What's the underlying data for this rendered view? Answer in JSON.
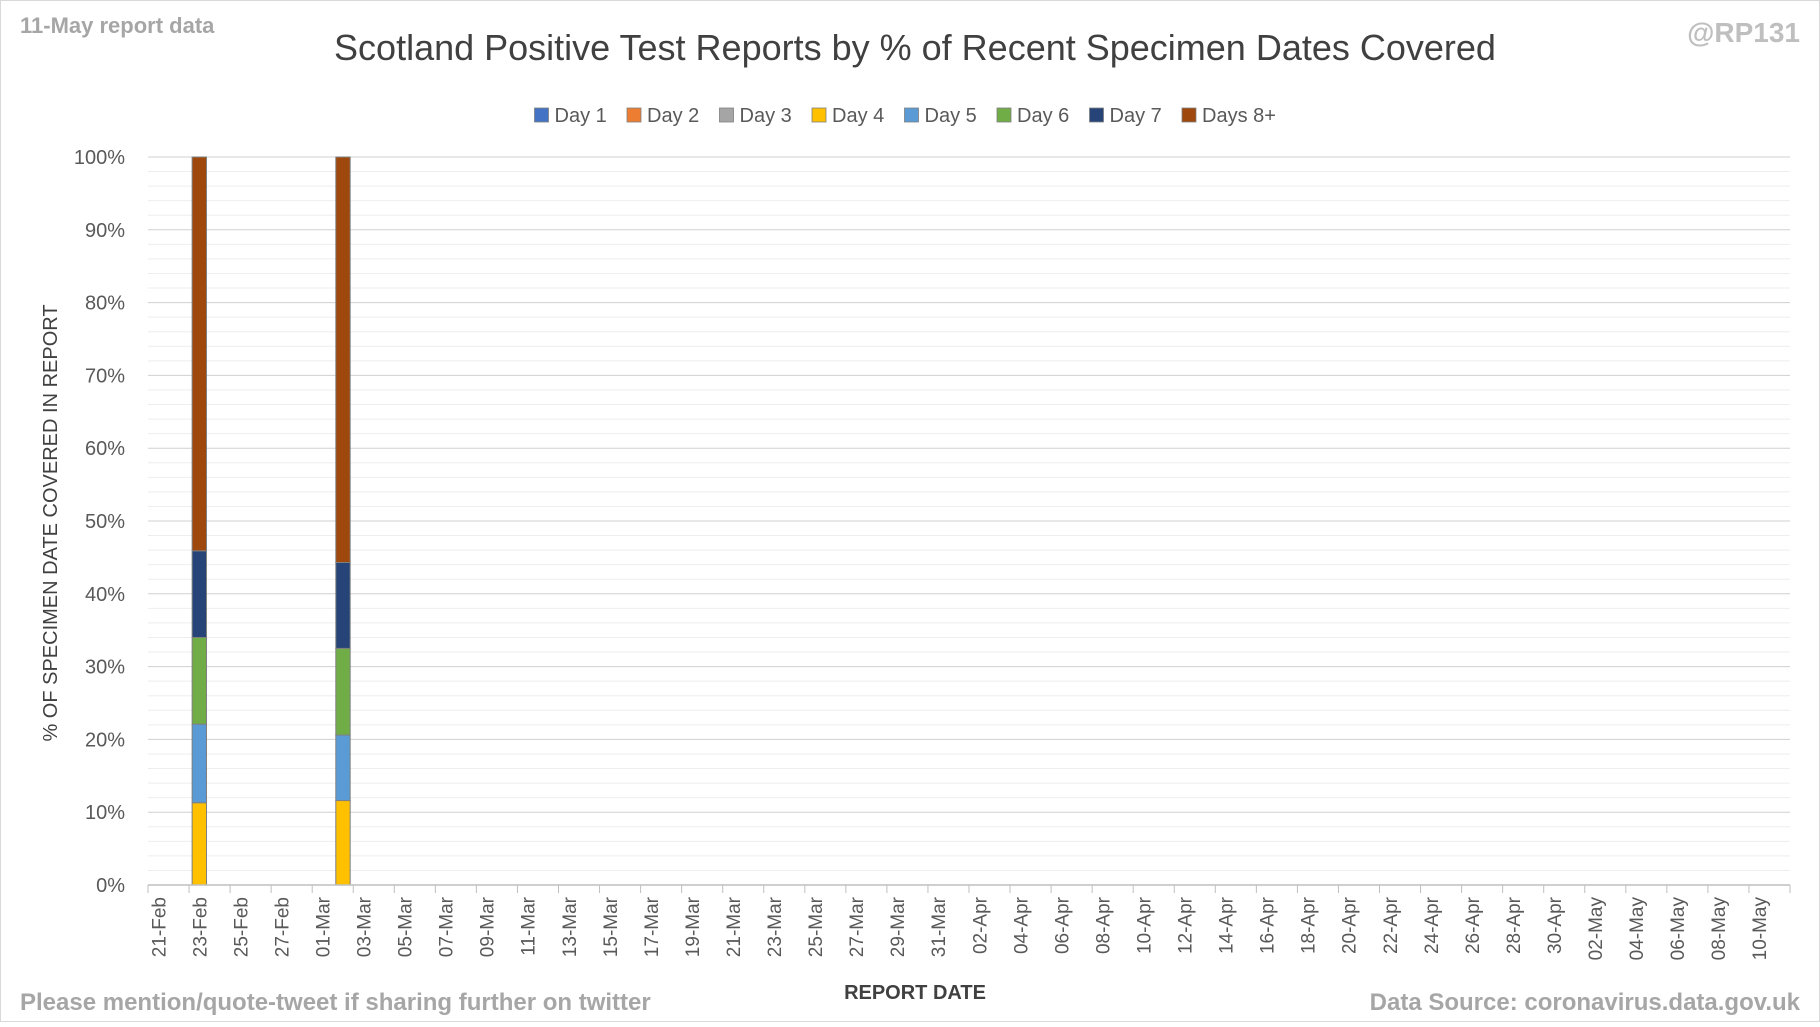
{
  "header": {
    "report_note": "11-May report data",
    "handle": "@RP131"
  },
  "footer": {
    "share_note": "Please mention/quote-tweet if sharing further on twitter",
    "source_note": "Data Source: coronavirus.data.gov.uk"
  },
  "chart_data": {
    "type": "bar",
    "stacked": true,
    "title": "Scotland Positive Test Reports by % of Recent Specimen Dates Covered",
    "xlabel": "REPORT DATE",
    "ylabel": "% OF SPECIMEN DATE COVERED IN REPORT",
    "ylim": [
      0,
      100
    ],
    "y_tick_labels": [
      "0%",
      "10%",
      "20%",
      "30%",
      "40%",
      "50%",
      "60%",
      "70%",
      "80%",
      "90%",
      "100%"
    ],
    "grid": true,
    "legend_position": "top",
    "categories": [
      "21-Feb",
      "22-Feb",
      "23-Feb",
      "24-Feb",
      "25-Feb",
      "26-Feb",
      "27-Feb",
      "28-Feb",
      "01-Mar",
      "02-Mar",
      "03-Mar",
      "04-Mar",
      "05-Mar",
      "06-Mar",
      "07-Mar",
      "08-Mar",
      "09-Mar",
      "10-Mar",
      "11-Mar",
      "12-Mar",
      "13-Mar",
      "14-Mar",
      "15-Mar",
      "16-Mar",
      "17-Mar",
      "18-Mar",
      "19-Mar",
      "20-Mar",
      "21-Mar",
      "22-Mar",
      "23-Mar",
      "24-Mar",
      "25-Mar",
      "26-Mar",
      "27-Mar",
      "28-Mar",
      "29-Mar",
      "30-Mar",
      "31-Mar",
      "01-Apr",
      "02-Apr",
      "03-Apr",
      "04-Apr",
      "05-Apr",
      "06-Apr",
      "07-Apr",
      "08-Apr",
      "09-Apr",
      "10-Apr",
      "11-Apr",
      "12-Apr",
      "13-Apr",
      "14-Apr",
      "15-Apr",
      "16-Apr",
      "17-Apr",
      "18-Apr",
      "19-Apr",
      "20-Apr",
      "21-Apr",
      "22-Apr",
      "23-Apr",
      "24-Apr",
      "25-Apr",
      "26-Apr",
      "27-Apr",
      "28-Apr",
      "29-Apr",
      "30-Apr",
      "01-May",
      "02-May",
      "03-May",
      "04-May",
      "05-May",
      "06-May",
      "07-May",
      "08-May",
      "09-May",
      "10-May",
      "11-May"
    ],
    "tick_labels": [
      "21-Feb",
      "23-Feb",
      "25-Feb",
      "27-Feb",
      "01-Mar",
      "03-Mar",
      "05-Mar",
      "07-Mar",
      "09-Mar",
      "11-Mar",
      "13-Mar",
      "15-Mar",
      "17-Mar",
      "19-Mar",
      "21-Mar",
      "23-Mar",
      "25-Mar",
      "27-Mar",
      "29-Mar",
      "31-Mar",
      "02-Apr",
      "04-Apr",
      "06-Apr",
      "08-Apr",
      "10-Apr",
      "12-Apr",
      "14-Apr",
      "16-Apr",
      "18-Apr",
      "20-Apr",
      "22-Apr",
      "24-Apr",
      "26-Apr",
      "28-Apr",
      "30-Apr",
      "02-May",
      "04-May",
      "06-May",
      "08-May",
      "10-May"
    ],
    "colors": {
      "Day 1": "#4472c4",
      "Day 2": "#ed7d31",
      "Day 3": "#a5a5a5",
      "Day 4": "#ffc000",
      "Day 5": "#5b9bd5",
      "Day 6": "#70ad47",
      "Day 7": "#264478",
      "Days 8+": "#9e480e"
    },
    "series": [
      {
        "name": "Day 1",
        "values": {
          "23-Feb": 0,
          "02-Mar": 0
        }
      },
      {
        "name": "Day 2",
        "values": {
          "23-Feb": 0,
          "02-Mar": 0
        }
      },
      {
        "name": "Day 3",
        "values": {
          "23-Feb": 0,
          "02-Mar": 0
        }
      },
      {
        "name": "Day 4",
        "values": {
          "23-Feb": 11.3,
          "02-Mar": 11.6
        }
      },
      {
        "name": "Day 5",
        "values": {
          "23-Feb": 10.8,
          "02-Mar": 9.0
        }
      },
      {
        "name": "Day 6",
        "values": {
          "23-Feb": 11.9,
          "02-Mar": 11.9
        }
      },
      {
        "name": "Day 7",
        "values": {
          "23-Feb": 11.9,
          "02-Mar": 11.8
        }
      },
      {
        "name": "Days 8+",
        "values": {
          "23-Feb": 54.1,
          "02-Mar": 55.7
        }
      }
    ]
  }
}
